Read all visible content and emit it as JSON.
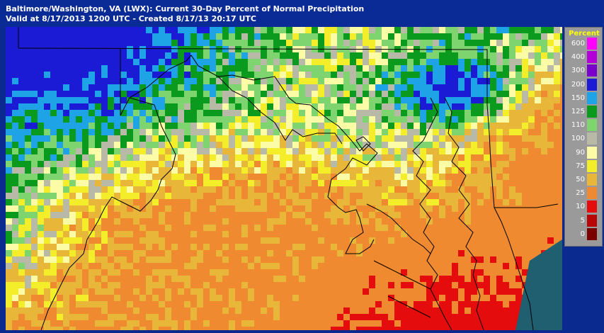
{
  "header": {
    "title": "Baltimore/Washington, VA (LWX): Current 30-Day Percent of Normal Precipitation",
    "subtitle": "Valid at 8/17/2013 1200 UTC - Created 8/17/13 20:17 UTC"
  },
  "legend": {
    "title": "Percent",
    "items": [
      {
        "label": "600",
        "color": "#ff00ff"
      },
      {
        "label": "400",
        "color": "#b400d8"
      },
      {
        "label": "300",
        "color": "#7a00cc"
      },
      {
        "label": "200",
        "color": "#1b1bd6"
      },
      {
        "label": "150",
        "color": "#1ea3e6"
      },
      {
        "label": "125",
        "color": "#0a9a1e"
      },
      {
        "label": "110",
        "color": "#7ed46e"
      },
      {
        "label": "100",
        "color": "#b9b9a8"
      },
      {
        "label": "90",
        "color": "#fdfca6"
      },
      {
        "label": "75",
        "color": "#f4ee2a"
      },
      {
        "label": "50",
        "color": "#e8b638"
      },
      {
        "label": "25",
        "color": "#f08a30"
      },
      {
        "label": "10",
        "color": "#e40c0c"
      },
      {
        "label": "5",
        "color": "#b80606"
      },
      {
        "label": "0",
        "color": "#7a0000"
      }
    ]
  },
  "colors": {
    "background": "#0b2a8f",
    "header": "#0a2a96",
    "boundary": "#000000",
    "water": "#1f5f70"
  }
}
